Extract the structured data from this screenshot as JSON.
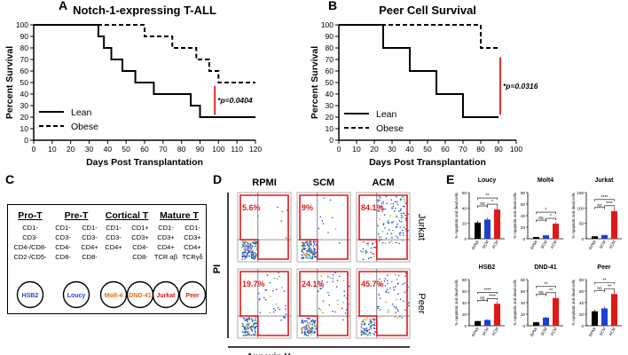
{
  "panels": {
    "A": "A",
    "B": "B",
    "C": "C",
    "D": "D",
    "E": "E"
  },
  "chart_data": [
    {
      "id": "A",
      "type": "line",
      "title": "Notch-1-expressing T-ALL",
      "xlabel": "Days Post Transplantation",
      "ylabel": "Percent Survival",
      "xlim": [
        0,
        120
      ],
      "ylim": [
        0,
        100
      ],
      "xticks": [
        0,
        10,
        20,
        30,
        40,
        50,
        60,
        70,
        80,
        90,
        100,
        110,
        120
      ],
      "yticks": [
        0,
        10,
        20,
        30,
        40,
        50,
        60,
        70,
        80,
        90,
        100
      ],
      "series": [
        {
          "name": "Lean",
          "style": "solid",
          "x": [
            0,
            33,
            35,
            38,
            42,
            48,
            55,
            65,
            75,
            85,
            90,
            120
          ],
          "y": [
            100,
            100,
            90,
            80,
            70,
            60,
            50,
            40,
            40,
            30,
            20,
            20
          ]
        },
        {
          "name": "Obese",
          "style": "dashed",
          "x": [
            0,
            55,
            60,
            65,
            75,
            80,
            88,
            95,
            100,
            120
          ],
          "y": [
            100,
            100,
            90,
            90,
            80,
            80,
            70,
            60,
            50,
            50
          ]
        }
      ],
      "pvalue": "*p=0.0404",
      "legend": [
        "Lean",
        "Obese"
      ]
    },
    {
      "id": "B",
      "type": "line",
      "title": "Peer Cell Survival",
      "xlabel": "Days Post Transplantation",
      "ylabel": "Percent Survival",
      "xlim": [
        0,
        100
      ],
      "ylim": [
        0,
        100
      ],
      "xticks": [
        0,
        10,
        20,
        30,
        40,
        50,
        60,
        70,
        80,
        90,
        100
      ],
      "yticks": [
        0,
        10,
        20,
        30,
        40,
        50,
        60,
        70,
        80,
        90,
        100
      ],
      "series": [
        {
          "name": "Lean",
          "style": "solid",
          "x": [
            0,
            25,
            40,
            55,
            70,
            90
          ],
          "y": [
            100,
            80,
            60,
            40,
            20,
            20
          ]
        },
        {
          "name": "Obese",
          "style": "dashed",
          "x": [
            0,
            80,
            90
          ],
          "y": [
            100,
            80,
            80
          ]
        }
      ],
      "pvalue": "*p=0.0316",
      "legend": [
        "Lean",
        "Obese"
      ]
    },
    {
      "id": "E",
      "type": "bar",
      "ylabel": "% Apoptotic and dead cells",
      "categories": [
        "RPMI",
        "SCM",
        "ACM"
      ],
      "colors": [
        "#000000",
        "#1f3fd1",
        "#e01818"
      ],
      "subplots": [
        {
          "name": "Loucy",
          "values": [
            21,
            25,
            38
          ],
          "ylim": [
            0,
            60
          ],
          "yticks": [
            0,
            20,
            40,
            60
          ],
          "sig": [
            {
              "a": 0,
              "b": 1,
              "label": "ns"
            },
            {
              "a": 1,
              "b": 2,
              "label": "*"
            },
            {
              "a": 0,
              "b": 2,
              "label": "**"
            }
          ]
        },
        {
          "name": "Molt4",
          "values": [
            3,
            6,
            26
          ],
          "ylim": [
            0,
            80
          ],
          "yticks": [
            0,
            20,
            40,
            60,
            80
          ],
          "sig": [
            {
              "a": 0,
              "b": 1,
              "label": "ns"
            },
            {
              "a": 1,
              "b": 2,
              "label": "*"
            },
            {
              "a": 0,
              "b": 2,
              "label": "*"
            }
          ]
        },
        {
          "name": "Jurkat",
          "values": [
            8,
            12,
            90
          ],
          "ylim": [
            0,
            150
          ],
          "yticks": [
            0,
            50,
            100,
            150
          ],
          "sig": [
            {
              "a": 0,
              "b": 1,
              "label": "ns"
            },
            {
              "a": 1,
              "b": 2,
              "label": "****"
            },
            {
              "a": 0,
              "b": 2,
              "label": "****"
            }
          ]
        },
        {
          "name": "HSB2",
          "values": [
            8,
            10,
            38
          ],
          "ylim": [
            0,
            80
          ],
          "yticks": [
            0,
            20,
            40,
            60,
            80
          ],
          "sig": [
            {
              "a": 0,
              "b": 1,
              "label": "ns"
            },
            {
              "a": 1,
              "b": 2,
              "label": "****"
            },
            {
              "a": 0,
              "b": 2,
              "label": "****"
            }
          ]
        },
        {
          "name": "DND-41",
          "values": [
            6,
            14,
            48
          ],
          "ylim": [
            0,
            80
          ],
          "yticks": [
            0,
            20,
            40,
            60,
            80
          ],
          "sig": [
            {
              "a": 0,
              "b": 1,
              "label": "ns"
            },
            {
              "a": 1,
              "b": 2,
              "label": "**"
            },
            {
              "a": 0,
              "b": 2,
              "label": "**"
            }
          ]
        },
        {
          "name": "Peer",
          "values": [
            25,
            30,
            55
          ],
          "ylim": [
            0,
            80
          ],
          "yticks": [
            0,
            20,
            40,
            60,
            80
          ],
          "sig": [
            {
              "a": 0,
              "b": 1,
              "label": "ns"
            },
            {
              "a": 1,
              "b": 2,
              "label": "**"
            },
            {
              "a": 0,
              "b": 2,
              "label": "**"
            }
          ]
        }
      ]
    }
  ],
  "diagram_c": {
    "stages": [
      {
        "title": "Pro-T",
        "columns": [
          [
            "CD1-",
            "CD3-",
            "CD4-/CD8-",
            "CD2-/CD5-"
          ]
        ],
        "cells": [
          {
            "name": "HSB2",
            "color": "#2a3fd8"
          }
        ]
      },
      {
        "title": "Pre-T",
        "columns": [
          [
            "CD1-",
            "CD3-",
            "CD4-",
            "CD8-"
          ],
          [
            "CD1-",
            "CD3-",
            "CD4+",
            "CD8-"
          ]
        ],
        "cells": [
          {
            "name": "Loucy",
            "color": "#2a3fd8"
          }
        ]
      },
      {
        "title": "Cortical T",
        "columns": [
          [
            "CD1-",
            "CD3-",
            "CD4+"
          ],
          [
            "CD1+",
            "CD3+",
            "CD4-",
            "CD8-"
          ]
        ],
        "cells": [
          {
            "name": "Molt-4",
            "color": "#e07010"
          },
          {
            "name": "DND-41",
            "color": "#e07010"
          }
        ]
      },
      {
        "title": "Mature T",
        "columns": [
          [
            "CD1-",
            "CD3+",
            "CD4+",
            "TCR αβ"
          ],
          [
            "CD1-",
            "CD3+",
            "CD4+",
            "TCRγδ"
          ]
        ],
        "cells": [
          {
            "name": "Jurkat",
            "color": "#e01818"
          },
          {
            "name": "Peer",
            "color": "#e01818"
          }
        ]
      }
    ]
  },
  "flow_d": {
    "columns": [
      "RPMI",
      "SCM",
      "ACM"
    ],
    "rows": [
      "Jurkat",
      "Peer"
    ],
    "percents": [
      [
        "5.6%",
        "9%",
        "84.1%"
      ],
      [
        "19.7%",
        "24.1%",
        "45.7%"
      ]
    ],
    "xlabel": "Annexin-V",
    "ylabel": "PI"
  },
  "colors": {
    "accent_red": "#e01818",
    "blue": "#1f3fd1",
    "orange": "#e07010"
  }
}
